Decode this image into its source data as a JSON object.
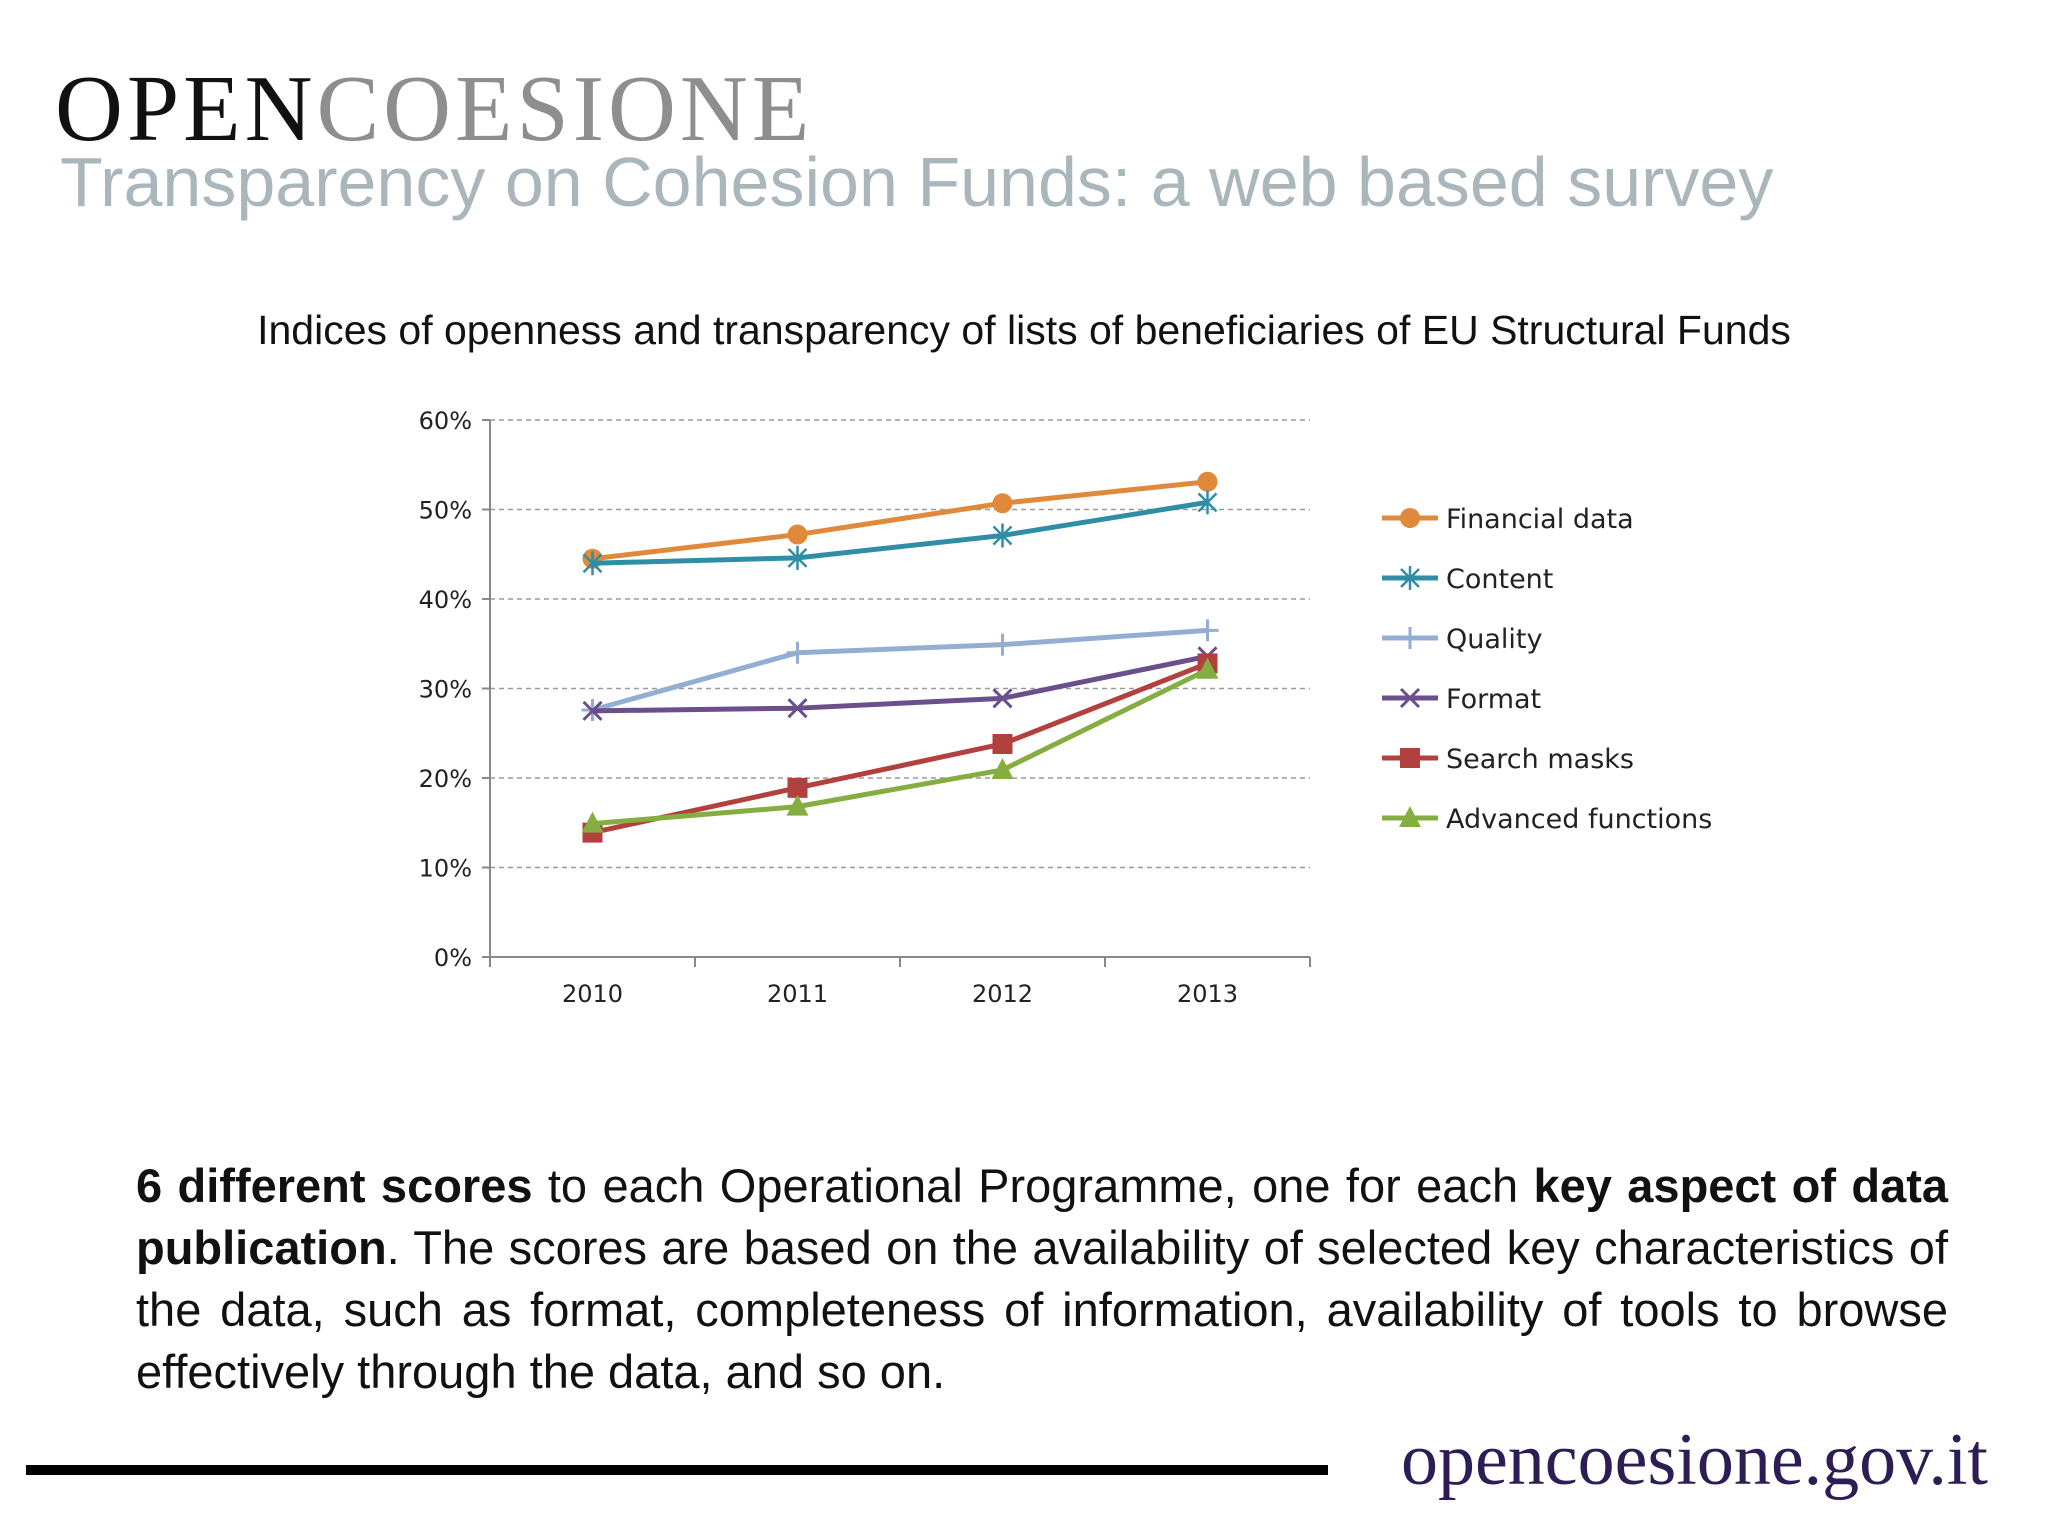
{
  "header": {
    "logo_part1": "OPEN",
    "logo_part2": "COESIONE",
    "subtitle": "Transparency on Cohesion Funds: a web based survey"
  },
  "chart_title": "Indices of openness and transparency of lists of beneficiaries of EU Structural Funds",
  "chart_data": {
    "type": "line",
    "title": "",
    "categories": [
      "2010",
      "2011",
      "2012",
      "2013"
    ],
    "ylim": [
      0,
      60
    ],
    "yticks": [
      "0%",
      "10%",
      "20%",
      "30%",
      "40%",
      "50%",
      "60%"
    ],
    "y_unit": "%",
    "grid": true,
    "legend_position": "right",
    "series": [
      {
        "name": "Financial data",
        "values": [
          44.5,
          47.2,
          50.7,
          53.1
        ],
        "color": "#e0893a",
        "marker": "circle"
      },
      {
        "name": "Content",
        "values": [
          44.0,
          44.6,
          47.1,
          50.8
        ],
        "color": "#2f8ea6",
        "marker": "asterisk"
      },
      {
        "name": "Quality",
        "values": [
          27.6,
          34.0,
          34.9,
          36.5
        ],
        "color": "#93aed2",
        "marker": "plus"
      },
      {
        "name": "Format",
        "values": [
          27.5,
          27.8,
          28.9,
          33.6
        ],
        "color": "#6b4e8c",
        "marker": "cross"
      },
      {
        "name": "Search masks",
        "values": [
          13.9,
          18.9,
          23.8,
          32.8
        ],
        "color": "#b2403d",
        "marker": "square"
      },
      {
        "name": "Advanced functions",
        "values": [
          14.9,
          16.8,
          20.9,
          32.1
        ],
        "color": "#86ad42",
        "marker": "triangle"
      }
    ]
  },
  "paragraph": {
    "bold1": "6 different scores",
    "text1": " to each Operational Programme, one for each ",
    "bold2": "key aspect of data publication",
    "text2": ". The scores are based on the availability of selected key characteristics of the data, such as format, completeness of information, availability of tools to browse effectively through the data, and so on."
  },
  "footer": {
    "website": "opencoesione.gov.it"
  }
}
